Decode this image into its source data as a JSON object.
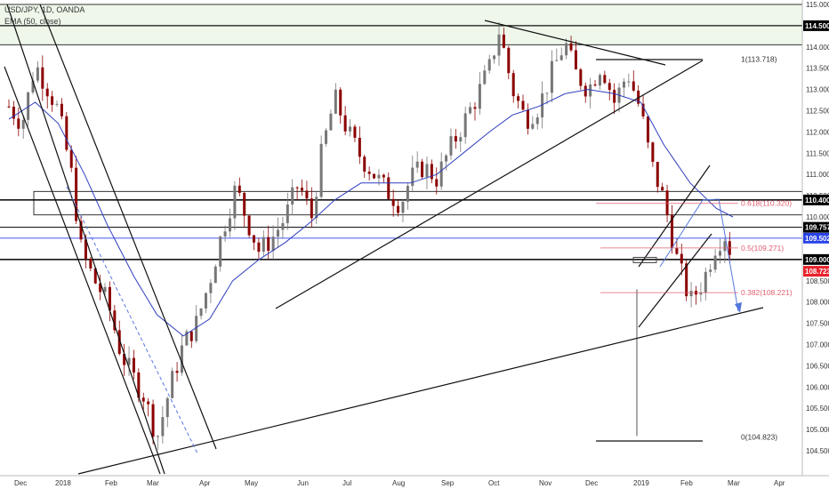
{
  "legend": {
    "symbol": "USD/JPY, 1D, OANDA",
    "indicator": "EMA (50, close)"
  },
  "colors": {
    "up_candle": "#777777",
    "down_candle": "#8b0000",
    "ema": "#2f3fbf",
    "fib": "#e06070",
    "blue_level": "#4455ee",
    "red_badge": "#e8242c",
    "blue_badge": "#2a44e6",
    "black_badge": "#000000",
    "zone_fill": "#eef7ea",
    "dashed_line": "#5577dd"
  },
  "chart_data": {
    "type": "candlestick",
    "title": "USD/JPY, 1D, OANDA",
    "overlay": "EMA (50, close)",
    "x_ticks": [
      "Dec",
      "2018",
      "Feb",
      "Mar",
      "Apr",
      "May",
      "Jun",
      "Jul",
      "Aug",
      "Sep",
      "Oct",
      "Nov",
      "Dec",
      "2019",
      "Feb",
      "Mar",
      "Apr"
    ],
    "y_ticks": [
      115.0,
      114.5,
      114.0,
      113.5,
      113.0,
      112.5,
      112.0,
      111.5,
      111.0,
      110.5,
      110.0,
      109.5,
      109.0,
      108.5,
      108.0,
      107.5,
      107.0,
      106.5,
      106.0,
      105.5,
      105.0,
      104.5
    ],
    "ylim": [
      104.3,
      115.2
    ],
    "price_badges": [
      {
        "value": "114.500",
        "style": "black"
      },
      {
        "value": "110.400",
        "style": "black"
      },
      {
        "value": "109.757",
        "style": "black-outline"
      },
      {
        "value": "109.502",
        "style": "blue"
      },
      {
        "value": "109.000",
        "style": "black"
      },
      {
        "value": "108.723",
        "style": "red"
      }
    ],
    "fib_labels": [
      {
        "ratio": "1",
        "text": "1(113.718)",
        "value": 113.718
      },
      {
        "ratio": "0.618",
        "text": "0.618(110.320)",
        "value": 110.32
      },
      {
        "ratio": "0.5",
        "text": "0.5(109.271)",
        "value": 109.271
      },
      {
        "ratio": "0.382",
        "text": "0.382(108.221)",
        "value": 108.221
      },
      {
        "ratio": "0",
        "text": "0(104.823)",
        "value": 104.823
      }
    ],
    "horizontal_levels": [
      115.0,
      114.5,
      114.05,
      110.4,
      109.757,
      109.502,
      109.0
    ],
    "zones": [
      {
        "from": 114.05,
        "to": 115.0
      },
      {
        "from": 110.05,
        "to": 110.6
      }
    ],
    "close_series": [
      {
        "t": 0,
        "close": 112.6
      },
      {
        "t": 0.04,
        "close": 112.2
      },
      {
        "t": 0.08,
        "close": 113.6
      },
      {
        "t": 0.12,
        "close": 113.0
      },
      {
        "t": 0.15,
        "close": 112.5
      },
      {
        "t": 0.19,
        "close": 111.0
      },
      {
        "t": 0.22,
        "close": 109.2
      },
      {
        "t": 0.26,
        "close": 108.5
      },
      {
        "t": 0.3,
        "close": 108.0
      },
      {
        "t": 0.34,
        "close": 106.8
      },
      {
        "t": 0.38,
        "close": 106.2
      },
      {
        "t": 0.41,
        "close": 105.8
      },
      {
        "t": 0.45,
        "close": 104.8
      },
      {
        "t": 0.49,
        "close": 106.0
      },
      {
        "t": 0.53,
        "close": 107.0
      },
      {
        "t": 0.57,
        "close": 107.5
      },
      {
        "t": 0.61,
        "close": 108.5
      },
      {
        "t": 0.65,
        "close": 109.7
      },
      {
        "t": 0.69,
        "close": 110.7
      },
      {
        "t": 0.72,
        "close": 110.0
      },
      {
        "t": 0.76,
        "close": 109.2
      },
      {
        "t": 0.8,
        "close": 109.5
      },
      {
        "t": 0.84,
        "close": 110.0
      },
      {
        "t": 0.88,
        "close": 110.8
      },
      {
        "t": 0.92,
        "close": 110.0
      },
      {
        "t": 0.95,
        "close": 111.5
      },
      {
        "t": 0.99,
        "close": 112.8
      },
      {
        "t": 1.03,
        "close": 112.0
      },
      {
        "t": 1.07,
        "close": 111.4
      },
      {
        "t": 1.11,
        "close": 111.0
      },
      {
        "t": 1.15,
        "close": 110.6
      },
      {
        "t": 1.19,
        "close": 110.3
      },
      {
        "t": 1.22,
        "close": 110.9
      },
      {
        "t": 1.26,
        "close": 111.2
      },
      {
        "t": 1.3,
        "close": 110.9
      },
      {
        "t": 1.34,
        "close": 111.6
      },
      {
        "t": 1.38,
        "close": 112.2
      },
      {
        "t": 1.42,
        "close": 112.8
      },
      {
        "t": 1.46,
        "close": 113.5
      },
      {
        "t": 1.49,
        "close": 114.4
      },
      {
        "t": 1.53,
        "close": 113.0
      },
      {
        "t": 1.57,
        "close": 112.3
      },
      {
        "t": 1.61,
        "close": 112.6
      },
      {
        "t": 1.65,
        "close": 113.4
      },
      {
        "t": 1.69,
        "close": 114.1
      },
      {
        "t": 1.72,
        "close": 113.4
      },
      {
        "t": 1.76,
        "close": 113.0
      },
      {
        "t": 1.8,
        "close": 113.6
      },
      {
        "t": 1.84,
        "close": 112.7
      },
      {
        "t": 1.88,
        "close": 113.4
      },
      {
        "t": 1.92,
        "close": 112.5
      },
      {
        "t": 1.95,
        "close": 111.3
      },
      {
        "t": 1.99,
        "close": 110.4
      },
      {
        "t": 2.03,
        "close": 109.0
      },
      {
        "t": 2.07,
        "close": 108.0
      },
      {
        "t": 2.11,
        "close": 108.5
      },
      {
        "t": 2.15,
        "close": 109.4
      },
      {
        "t": 2.18,
        "close": 109.6
      },
      {
        "t": 2.2,
        "close": 108.9
      }
    ],
    "ema_series": [
      {
        "t": 0,
        "value": 112.3
      },
      {
        "t": 0.08,
        "value": 112.7
      },
      {
        "t": 0.15,
        "value": 112.2
      },
      {
        "t": 0.23,
        "value": 111.0
      },
      {
        "t": 0.3,
        "value": 109.8
      },
      {
        "t": 0.38,
        "value": 108.6
      },
      {
        "t": 0.45,
        "value": 107.7
      },
      {
        "t": 0.53,
        "value": 107.2
      },
      {
        "t": 0.61,
        "value": 107.6
      },
      {
        "t": 0.68,
        "value": 108.5
      },
      {
        "t": 0.76,
        "value": 109.0
      },
      {
        "t": 0.84,
        "value": 109.4
      },
      {
        "t": 0.92,
        "value": 109.9
      },
      {
        "t": 0.99,
        "value": 110.4
      },
      {
        "t": 1.07,
        "value": 110.8
      },
      {
        "t": 1.15,
        "value": 110.8
      },
      {
        "t": 1.22,
        "value": 110.8
      },
      {
        "t": 1.3,
        "value": 111.0
      },
      {
        "t": 1.38,
        "value": 111.5
      },
      {
        "t": 1.46,
        "value": 112.0
      },
      {
        "t": 1.53,
        "value": 112.4
      },
      {
        "t": 1.61,
        "value": 112.6
      },
      {
        "t": 1.69,
        "value": 112.9
      },
      {
        "t": 1.76,
        "value": 113.0
      },
      {
        "t": 1.84,
        "value": 112.9
      },
      {
        "t": 1.92,
        "value": 112.7
      },
      {
        "t": 1.99,
        "value": 111.7
      },
      {
        "t": 2.07,
        "value": 110.8
      },
      {
        "t": 2.15,
        "value": 110.2
      },
      {
        "t": 2.2,
        "value": 110.0
      }
    ],
    "grid": false
  }
}
